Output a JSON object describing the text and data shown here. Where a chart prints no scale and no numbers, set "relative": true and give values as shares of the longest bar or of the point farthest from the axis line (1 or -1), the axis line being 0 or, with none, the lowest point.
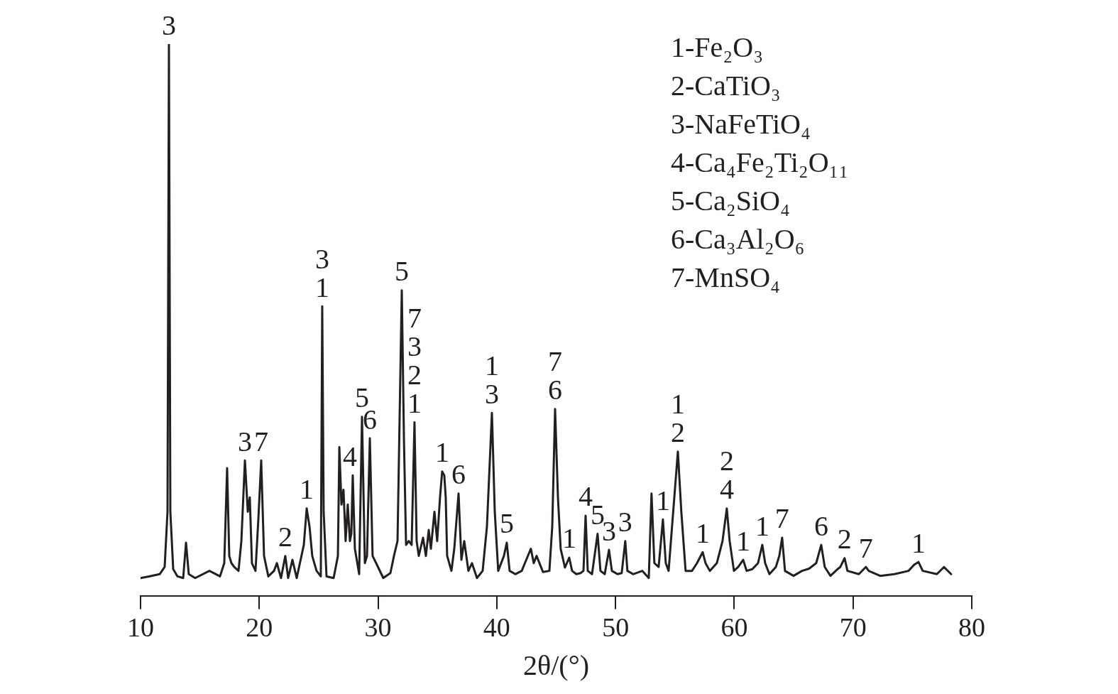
{
  "chart_data": {
    "type": "line",
    "relative": true,
    "xlabel": "2θ/(°)",
    "color": "#231f20",
    "marker": "none",
    "line_style": "solid",
    "grid": false,
    "legend": false,
    "tick_labels": "x",
    "xlim": [
      10,
      80
    ],
    "xticks": [
      10,
      20,
      30,
      40,
      50,
      60,
      70,
      80
    ],
    "x": [
      10.0,
      10.72,
      11.61,
      12.03,
      12.27,
      12.39,
      12.51,
      12.75,
      13.11,
      13.59,
      13.83,
      14.06,
      14.6,
      15.8,
      16.69,
      17.05,
      17.29,
      17.47,
      17.65,
      17.89,
      18.25,
      18.49,
      18.79,
      19.03,
      19.2,
      19.38,
      19.68,
      19.92,
      20.16,
      20.4,
      20.76,
      21.24,
      21.48,
      21.83,
      22.19,
      22.43,
      22.79,
      23.15,
      23.75,
      23.99,
      24.23,
      24.46,
      24.82,
      25.18,
      25.3,
      25.42,
      25.66,
      26.26,
      26.62,
      26.74,
      26.92,
      27.09,
      27.27,
      27.45,
      27.63,
      27.75,
      27.87,
      28.05,
      28.41,
      28.65,
      28.89,
      29.07,
      29.31,
      29.54,
      29.84,
      30.44,
      31.04,
      31.34,
      31.64,
      32.0,
      32.18,
      32.36,
      32.59,
      32.83,
      33.07,
      33.25,
      33.43,
      33.79,
      34.03,
      34.27,
      34.45,
      34.75,
      34.98,
      35.22,
      35.4,
      35.58,
      35.7,
      35.82,
      36.18,
      36.42,
      36.78,
      37.02,
      37.26,
      37.61,
      37.91,
      38.33,
      38.81,
      39.17,
      39.59,
      39.83,
      40.12,
      40.6,
      40.84,
      41.08,
      41.56,
      42.1,
      42.87,
      43.11,
      43.35,
      43.89,
      44.43,
      44.67,
      44.91,
      45.15,
      45.38,
      45.74,
      46.1,
      46.34,
      46.7,
      47.06,
      47.3,
      47.48,
      47.66,
      48.02,
      48.49,
      48.73,
      49.09,
      49.45,
      49.69,
      50.17,
      50.52,
      50.82,
      51.0,
      51.48,
      52.26,
      52.8,
      53.03,
      53.27,
      53.63,
      53.99,
      54.23,
      54.47,
      55.25,
      55.54,
      55.9,
      56.44,
      56.86,
      57.34,
      57.58,
      57.94,
      58.53,
      59.01,
      59.37,
      59.61,
      59.97,
      60.33,
      60.75,
      61.04,
      61.52,
      62.0,
      62.36,
      62.6,
      62.96,
      63.5,
      63.79,
      64.03,
      64.27,
      64.99,
      65.71,
      66.3,
      66.9,
      67.32,
      67.62,
      68.1,
      68.69,
      68.93,
      69.29,
      69.53,
      70.49,
      71.08,
      71.32,
      72.28,
      73.48,
      74.67,
      75.15,
      75.51,
      75.87,
      77.06,
      77.66,
      78.26
    ],
    "values": [
      0.033,
      0.036,
      0.04,
      0.053,
      0.153,
      1,
      0.153,
      0.049,
      0.036,
      0.033,
      0.097,
      0.04,
      0.033,
      0.046,
      0.036,
      0.06,
      0.232,
      0.073,
      0.06,
      0.053,
      0.046,
      0.1,
      0.246,
      0.153,
      0.179,
      0.06,
      0.046,
      0.139,
      0.246,
      0.073,
      0.036,
      0.046,
      0.06,
      0.033,
      0.073,
      0.033,
      0.066,
      0.033,
      0.093,
      0.159,
      0.126,
      0.073,
      0.046,
      0.036,
      0.525,
      0.153,
      0.036,
      0.033,
      0.073,
      0.27,
      0.166,
      0.193,
      0.1,
      0.166,
      0.1,
      0.113,
      0.219,
      0.086,
      0.04,
      0.325,
      0.06,
      0.073,
      0.286,
      0.073,
      0.06,
      0.033,
      0.042,
      0.073,
      0.1,
      0.554,
      0.286,
      0.093,
      0.1,
      0.093,
      0.315,
      0.1,
      0.073,
      0.106,
      0.073,
      0.12,
      0.086,
      0.153,
      0.1,
      0.179,
      0.226,
      0.219,
      0.179,
      0.073,
      0.046,
      0.086,
      0.186,
      0.066,
      0.1,
      0.046,
      0.06,
      0.033,
      0.046,
      0.126,
      0.332,
      0.153,
      0.046,
      0.073,
      0.097,
      0.046,
      0.04,
      0.046,
      0.086,
      0.06,
      0.073,
      0.044,
      0.046,
      0.126,
      0.339,
      0.179,
      0.086,
      0.052,
      0.07,
      0.046,
      0.04,
      0.042,
      0.046,
      0.146,
      0.046,
      0.04,
      0.113,
      0.046,
      0.04,
      0.084,
      0.046,
      0.04,
      0.042,
      0.1,
      0.046,
      0.04,
      0.046,
      0.033,
      0.186,
      0.06,
      0.053,
      0.139,
      0.06,
      0.046,
      0.262,
      0.153,
      0.046,
      0.046,
      0.06,
      0.08,
      0.06,
      0.046,
      0.06,
      0.1,
      0.159,
      0.1,
      0.046,
      0.053,
      0.066,
      0.046,
      0.049,
      0.06,
      0.093,
      0.06,
      0.04,
      0.053,
      0.073,
      0.106,
      0.046,
      0.037,
      0.046,
      0.05,
      0.06,
      0.093,
      0.053,
      0.037,
      0.049,
      0.053,
      0.069,
      0.046,
      0.04,
      0.053,
      0.046,
      0.037,
      0.04,
      0.046,
      0.057,
      0.062,
      0.046,
      0.04,
      0.053,
      0.04
    ],
    "annotations": [
      {
        "text": "3",
        "x": 12.39,
        "y": 1
      },
      {
        "text": "3",
        "x": 18.79,
        "y": 0.246
      },
      {
        "text": "7",
        "x": 20.16,
        "y": 0.246
      },
      {
        "text": "2",
        "x": 22.19,
        "y": 0.073
      },
      {
        "text": "1",
        "x": 23.99,
        "y": 0.159
      },
      {
        "text": "3\n1",
        "x": 25.3,
        "y": 0.525
      },
      {
        "text": "4",
        "x": 27.63,
        "y": 0.219
      },
      {
        "text": "5",
        "x": 28.65,
        "y": 0.325
      },
      {
        "text": "6",
        "x": 29.31,
        "y": 0.286
      },
      {
        "text": "5",
        "x": 32.0,
        "y": 0.554
      },
      {
        "text": "7\n3\n2\n1",
        "x": 33.07,
        "y": 0.315
      },
      {
        "text": "1",
        "x": 35.4,
        "y": 0.226
      },
      {
        "text": "6",
        "x": 36.78,
        "y": 0.186
      },
      {
        "text": "1\n3",
        "x": 39.59,
        "y": 0.332
      },
      {
        "text": "5",
        "x": 40.84,
        "y": 0.097
      },
      {
        "text": "7\n6",
        "x": 44.91,
        "y": 0.339
      },
      {
        "text": "1",
        "x": 46.1,
        "y": 0.07
      },
      {
        "text": "4",
        "x": 47.48,
        "y": 0.146
      },
      {
        "text": "5",
        "x": 48.49,
        "y": 0.113
      },
      {
        "text": "3",
        "x": 49.45,
        "y": 0.084
      },
      {
        "text": "3",
        "x": 50.82,
        "y": 0.1
      },
      {
        "text": "1",
        "x": 53.99,
        "y": 0.139
      },
      {
        "text": "1\n2",
        "x": 55.25,
        "y": 0.262
      },
      {
        "text": "1",
        "x": 57.34,
        "y": 0.08
      },
      {
        "text": "2\n4",
        "x": 59.37,
        "y": 0.159
      },
      {
        "text": "1",
        "x": 60.75,
        "y": 0.066
      },
      {
        "text": "1",
        "x": 62.36,
        "y": 0.093
      },
      {
        "text": "7",
        "x": 64.03,
        "y": 0.106
      },
      {
        "text": "6",
        "x": 67.32,
        "y": 0.093
      },
      {
        "text": "2",
        "x": 69.29,
        "y": 0.069
      },
      {
        "text": "7",
        "x": 71.08,
        "y": 0.053
      },
      {
        "text": "1",
        "x": 75.51,
        "y": 0.062
      },
      "1-Fe₂O₃",
      "2-CaTiO₃",
      "3-NaFeTiO₄",
      "4-Ca₄Fe₂Ti₂O₁₁",
      "5-Ca₂SiO₄",
      "6-Ca₃Al₂O₆",
      "7-MnSO₄"
    ]
  }
}
